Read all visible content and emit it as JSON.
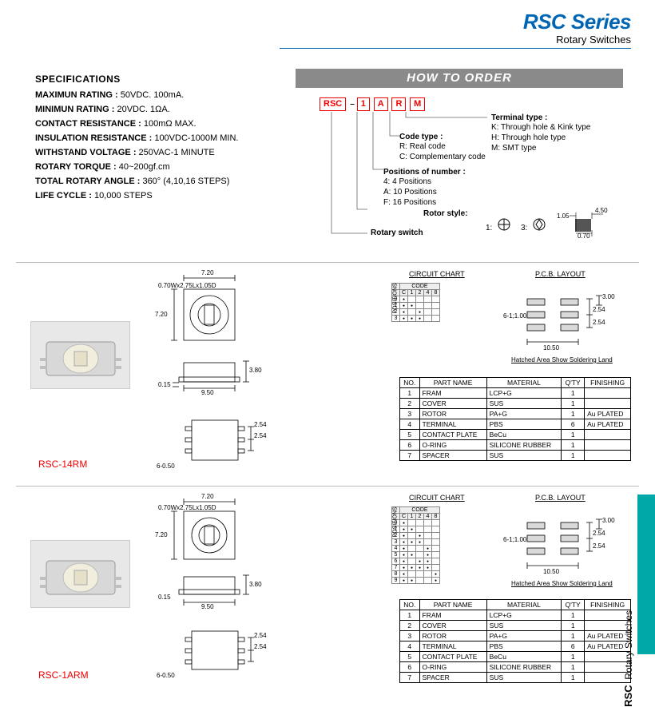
{
  "header": {
    "title": "RSC Series",
    "subtitle": "Rotary Switches"
  },
  "specs": {
    "title": "SPECIFICATIONS",
    "rows": [
      {
        "k": "MAXIMUN RATING :",
        "v": " 50VDC. 100mA."
      },
      {
        "k": "MINIMUN RATING :",
        "v": " 20VDC. 1ΩA."
      },
      {
        "k": "CONTACT RESISTANCE :",
        "v": " 100mΩ MAX."
      },
      {
        "k": "INSULATION RESISTANCE :",
        "v": " 100VDC-1000M  MIN."
      },
      {
        "k": "WITHSTAND VOLTAGE :",
        "v": " 250VAC-1 MINUTE"
      },
      {
        "k": "ROTARY TORQUE :",
        "v": " 40~200gf.cm"
      },
      {
        "k": "TOTAL ROTARY ANGLE :",
        "v": " 360° (4,10,16 STEPS)"
      },
      {
        "k": "LIFE CYCLE :",
        "v": " 10,000 STEPS"
      }
    ]
  },
  "howto": {
    "bar": "HOW TO ORDER",
    "code": [
      "RSC",
      "1",
      "A",
      "R",
      "M"
    ],
    "terminal": {
      "title": "Terminal type :",
      "lines": [
        "K: Through hole & Kink type",
        "H: Through hole type",
        "M: SMT type"
      ]
    },
    "codetype": {
      "title": "Code type :",
      "lines": [
        "R: Real code",
        "C: Complementary code"
      ]
    },
    "positions": {
      "title": "Positions of number :",
      "lines": [
        "4: 4 Positions",
        "A: 10 Positions",
        "F: 16 Positions"
      ]
    },
    "rotorstyle": {
      "title": "Rotor style:",
      "n1": "1:",
      "n3": "3:",
      "d1": "1.05",
      "d2": "4.50",
      "d3": "0.70"
    },
    "rotaryswitch": "Rotary switch"
  },
  "sections": {
    "circuit": "CIRCUIT CHART",
    "pcb": "P.C.B. LAYOUT",
    "pcbnote": "Hatched Area Show Soldering Land",
    "chart_hdr": "CODE",
    "chart_cols": [
      "C",
      "1",
      "2",
      "4",
      "8"
    ],
    "chart_vlabel": "POSITIONS"
  },
  "pcb_dims": {
    "a": "3.00",
    "b": "2.54",
    "c": "2.54",
    "d": "6-1;1.00",
    "e": "10.50"
  },
  "dims": {
    "top_w": "7.20",
    "slot": "0.70Wx2.75Lx1.05D",
    "side_h": "7.20",
    "body_w": "9.50",
    "body_h": "3.80",
    "gap": "0.15",
    "pitch1": "2.54",
    "pitch2": "2.54",
    "hole": "6-0.50"
  },
  "parts": {
    "headers": [
      "NO.",
      "PART NAME",
      "MATERIAL",
      "Q'TY",
      "FINISHING"
    ],
    "rows14": [
      [
        "1",
        "FRAM",
        "LCP+G",
        "1",
        ""
      ],
      [
        "2",
        "COVER",
        "SUS",
        "1",
        ""
      ],
      [
        "3",
        "ROTOR",
        "PA+G",
        "1",
        "Au PLATED"
      ],
      [
        "4",
        "TERMINAL",
        "PBS",
        "6",
        "Au PLATED"
      ],
      [
        "5",
        "CONTACT PLATE",
        "BeCu",
        "1",
        ""
      ],
      [
        "6",
        "O-RING",
        "SILICONE RUBBER",
        "1",
        ""
      ],
      [
        "7",
        "SPACER",
        "SUS",
        "1",
        ""
      ]
    ],
    "rows1a": [
      [
        "1",
        "FRAM",
        "LCP+G",
        "1",
        ""
      ],
      [
        "2",
        "COVER",
        "SUS",
        "1",
        ""
      ],
      [
        "3",
        "ROTOR",
        "PA+G",
        "1",
        "Au PLATED"
      ],
      [
        "4",
        "TERMINAL",
        "PBS",
        "6",
        "Au PLATED"
      ],
      [
        "5",
        "CONTACT PLATE",
        "BeCu",
        "1",
        ""
      ],
      [
        "6",
        "O-RING",
        "SILICONE RUBBER",
        "1",
        ""
      ],
      [
        "7",
        "SPACER",
        "SUS",
        "1",
        ""
      ]
    ]
  },
  "models": {
    "m1": "RSC-14RM",
    "m2": "RSC-1ARM"
  },
  "side": {
    "code": "RSC",
    "name": "Rotary  Switches"
  }
}
